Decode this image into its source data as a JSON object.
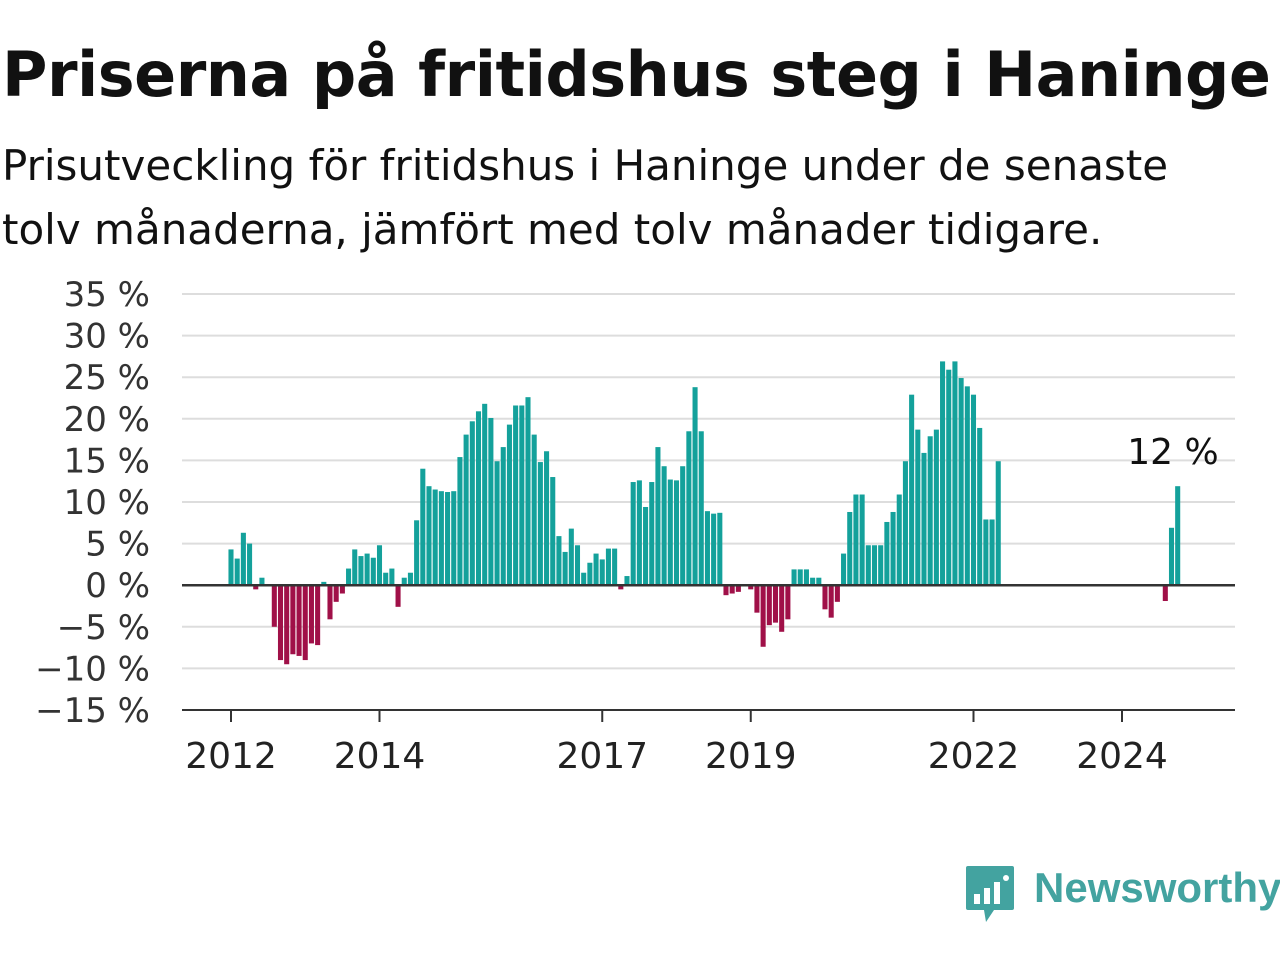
{
  "header": {
    "title": "Priserna på fritidshus steg i Haninge",
    "subtitle": "Prisutveckling för fritidshus i Haninge under de senaste tolv månaderna, jämfört med tolv månader tidigare."
  },
  "brand": {
    "name": "Newsworthy",
    "logo_icon": "bar-chart-speech-bubble-icon"
  },
  "colors": {
    "positive": "#14a19b",
    "negative": "#a01048",
    "grid": "#dddddd",
    "zero_line": "#333333"
  },
  "chart_data": {
    "type": "bar",
    "title": "Priserna på fritidshus steg i Haninge",
    "subtitle": "Prisutveckling för fritidshus i Haninge under de senaste tolv månaderna, jämfört med tolv månader tidigare.",
    "xlabel": "",
    "ylabel": "",
    "ylim": [
      -15,
      35
    ],
    "yticks": [
      35,
      30,
      25,
      20,
      15,
      10,
      5,
      0,
      -5,
      -10,
      -15
    ],
    "ytick_labels": [
      "35 %",
      "30 %",
      "25 %",
      "20 %",
      "15 %",
      "10 %",
      "5 %",
      "0 %",
      "−5 %",
      "−10 %",
      "−15 %"
    ],
    "xticks": [
      "2012",
      "2014",
      "2017",
      "2019",
      "2022",
      "2024"
    ],
    "grid": true,
    "annotation": "12 %",
    "series": [
      {
        "values": [
          {
            "date": "2012-01",
            "value": 4.3
          },
          {
            "date": "2012-02",
            "value": 3.2
          },
          {
            "date": "2012-03",
            "value": 6.3
          },
          {
            "date": "2012-04",
            "value": 5.0
          },
          {
            "date": "2012-05",
            "value": -0.5
          },
          {
            "date": "2012-06",
            "value": 0.9
          },
          {
            "date": "2012-08",
            "value": -5.0
          },
          {
            "date": "2012-09",
            "value": -9.0
          },
          {
            "date": "2012-10",
            "value": -9.5
          },
          {
            "date": "2012-11",
            "value": -8.3
          },
          {
            "date": "2012-12",
            "value": -8.5
          },
          {
            "date": "2013-01",
            "value": -9.0
          },
          {
            "date": "2013-02",
            "value": -7.0
          },
          {
            "date": "2013-03",
            "value": -7.2
          },
          {
            "date": "2013-04",
            "value": 0.4
          },
          {
            "date": "2013-05",
            "value": -4.1
          },
          {
            "date": "2013-06",
            "value": -2.0
          },
          {
            "date": "2013-07",
            "value": -1.0
          },
          {
            "date": "2013-08",
            "value": 2.0
          },
          {
            "date": "2013-09",
            "value": 4.3
          },
          {
            "date": "2013-10",
            "value": 3.5
          },
          {
            "date": "2013-11",
            "value": 3.8
          },
          {
            "date": "2013-12",
            "value": 3.3
          },
          {
            "date": "2014-01",
            "value": 4.8
          },
          {
            "date": "2014-02",
            "value": 1.5
          },
          {
            "date": "2014-03",
            "value": 2.0
          },
          {
            "date": "2014-04",
            "value": -2.6
          },
          {
            "date": "2014-05",
            "value": 0.9
          },
          {
            "date": "2014-06",
            "value": 1.5
          },
          {
            "date": "2014-07",
            "value": 7.8
          },
          {
            "date": "2014-08",
            "value": 14.0
          },
          {
            "date": "2014-09",
            "value": 11.9
          },
          {
            "date": "2014-10",
            "value": 11.5
          },
          {
            "date": "2014-11",
            "value": 11.3
          },
          {
            "date": "2014-12",
            "value": 11.2
          },
          {
            "date": "2015-01",
            "value": 11.3
          },
          {
            "date": "2015-02",
            "value": 15.4
          },
          {
            "date": "2015-03",
            "value": 18.1
          },
          {
            "date": "2015-04",
            "value": 19.7
          },
          {
            "date": "2015-05",
            "value": 20.9
          },
          {
            "date": "2015-06",
            "value": 21.8
          },
          {
            "date": "2015-07",
            "value": 20.1
          },
          {
            "date": "2015-08",
            "value": 14.9
          },
          {
            "date": "2015-09",
            "value": 16.6
          },
          {
            "date": "2015-10",
            "value": 19.3
          },
          {
            "date": "2015-11",
            "value": 21.6
          },
          {
            "date": "2015-12",
            "value": 21.6
          },
          {
            "date": "2016-01",
            "value": 22.6
          },
          {
            "date": "2016-02",
            "value": 18.1
          },
          {
            "date": "2016-03",
            "value": 14.8
          },
          {
            "date": "2016-04",
            "value": 16.1
          },
          {
            "date": "2016-05",
            "value": 13.0
          },
          {
            "date": "2016-06",
            "value": 5.9
          },
          {
            "date": "2016-07",
            "value": 4.0
          },
          {
            "date": "2016-08",
            "value": 6.8
          },
          {
            "date": "2016-09",
            "value": 4.8
          },
          {
            "date": "2016-10",
            "value": 1.5
          },
          {
            "date": "2016-11",
            "value": 2.7
          },
          {
            "date": "2016-12",
            "value": 3.8
          },
          {
            "date": "2017-01",
            "value": 3.1
          },
          {
            "date": "2017-02",
            "value": 4.4
          },
          {
            "date": "2017-03",
            "value": 4.4
          },
          {
            "date": "2017-04",
            "value": -0.5
          },
          {
            "date": "2017-05",
            "value": 1.1
          },
          {
            "date": "2017-06",
            "value": 12.4
          },
          {
            "date": "2017-07",
            "value": 12.6
          },
          {
            "date": "2017-08",
            "value": 9.4
          },
          {
            "date": "2017-09",
            "value": 12.4
          },
          {
            "date": "2017-10",
            "value": 16.6
          },
          {
            "date": "2017-11",
            "value": 14.3
          },
          {
            "date": "2017-12",
            "value": 12.7
          },
          {
            "date": "2018-01",
            "value": 12.6
          },
          {
            "date": "2018-02",
            "value": 14.3
          },
          {
            "date": "2018-03",
            "value": 18.5
          },
          {
            "date": "2018-04",
            "value": 23.8
          },
          {
            "date": "2018-05",
            "value": 18.5
          },
          {
            "date": "2018-06",
            "value": 8.9
          },
          {
            "date": "2018-07",
            "value": 8.6
          },
          {
            "date": "2018-08",
            "value": 8.7
          },
          {
            "date": "2018-09",
            "value": -1.2
          },
          {
            "date": "2018-10",
            "value": -1.0
          },
          {
            "date": "2018-11",
            "value": -0.8
          },
          {
            "date": "2019-01",
            "value": -0.5
          },
          {
            "date": "2019-02",
            "value": -3.3
          },
          {
            "date": "2019-03",
            "value": -7.4
          },
          {
            "date": "2019-04",
            "value": -4.8
          },
          {
            "date": "2019-05",
            "value": -4.5
          },
          {
            "date": "2019-06",
            "value": -5.6
          },
          {
            "date": "2019-07",
            "value": -4.1
          },
          {
            "date": "2019-08",
            "value": 1.9
          },
          {
            "date": "2019-09",
            "value": 1.9
          },
          {
            "date": "2019-10",
            "value": 1.9
          },
          {
            "date": "2019-11",
            "value": 0.9
          },
          {
            "date": "2019-12",
            "value": 0.9
          },
          {
            "date": "2020-01",
            "value": -2.9
          },
          {
            "date": "2020-02",
            "value": -3.9
          },
          {
            "date": "2020-03",
            "value": -2.0
          },
          {
            "date": "2020-04",
            "value": 3.8
          },
          {
            "date": "2020-05",
            "value": 8.8
          },
          {
            "date": "2020-06",
            "value": 10.9
          },
          {
            "date": "2020-07",
            "value": 10.9
          },
          {
            "date": "2020-08",
            "value": 4.8
          },
          {
            "date": "2020-09",
            "value": 4.8
          },
          {
            "date": "2020-10",
            "value": 4.8
          },
          {
            "date": "2020-11",
            "value": 7.6
          },
          {
            "date": "2020-12",
            "value": 8.8
          },
          {
            "date": "2021-01",
            "value": 10.9
          },
          {
            "date": "2021-02",
            "value": 14.9
          },
          {
            "date": "2021-03",
            "value": 22.9
          },
          {
            "date": "2021-04",
            "value": 18.7
          },
          {
            "date": "2021-05",
            "value": 15.9
          },
          {
            "date": "2021-06",
            "value": 17.9
          },
          {
            "date": "2021-07",
            "value": 18.7
          },
          {
            "date": "2021-08",
            "value": 26.9
          },
          {
            "date": "2021-09",
            "value": 25.9
          },
          {
            "date": "2021-10",
            "value": 26.9
          },
          {
            "date": "2021-11",
            "value": 24.9
          },
          {
            "date": "2021-12",
            "value": 23.9
          },
          {
            "date": "2022-01",
            "value": 22.9
          },
          {
            "date": "2022-02",
            "value": 18.9
          },
          {
            "date": "2022-03",
            "value": 7.9
          },
          {
            "date": "2022-04",
            "value": 7.9
          },
          {
            "date": "2022-05",
            "value": 14.9
          },
          {
            "date": "2024-08",
            "value": -1.9
          },
          {
            "date": "2024-09",
            "value": 6.9
          },
          {
            "date": "2024-10",
            "value": 11.9
          }
        ]
      }
    ]
  }
}
